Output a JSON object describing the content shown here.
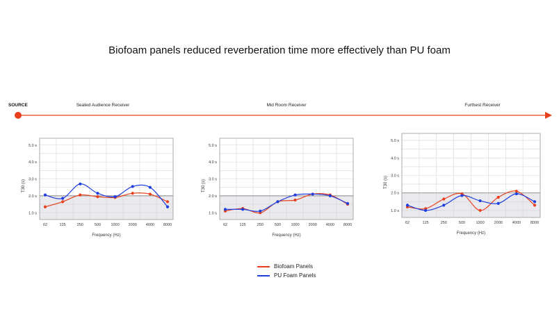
{
  "title": "Biofoam panels reduced reverberation time more effectively than PU foam",
  "timeline": {
    "source_label": "SOURCE",
    "colors": {
      "line": "#e8401c"
    }
  },
  "legend": [
    {
      "label": "Biofoam Panels",
      "color": "#e8401c"
    },
    {
      "label": "PU Foam Panels",
      "color": "#1f3ee0"
    }
  ],
  "chart_data": [
    {
      "type": "line",
      "title": "Seated Audience Receiver",
      "xlabel": "Frequency (Hz)",
      "ylabel": "T30 (s)",
      "categories": [
        "62",
        "125",
        "250",
        "500",
        "1000",
        "2000",
        "4000",
        "8000"
      ],
      "y_ticks": [
        "1.0 s",
        "2.0 s",
        "3.0 s",
        "4.0 s",
        "5.0 s"
      ],
      "ylim": [
        0.6,
        5.4
      ],
      "reference_line": 2.0,
      "series": [
        {
          "name": "Biofoam Panels",
          "color": "#e8401c",
          "values": [
            1.35,
            1.65,
            2.05,
            1.95,
            1.9,
            2.15,
            2.1,
            1.65
          ]
        },
        {
          "name": "PU Foam Panels",
          "color": "#1f3ee0",
          "values": [
            2.05,
            1.85,
            2.7,
            2.15,
            1.95,
            2.55,
            2.5,
            1.35
          ]
        }
      ]
    },
    {
      "type": "line",
      "title": "Mid Room Receiver",
      "xlabel": "Frequency (Hz)",
      "ylabel": "T30 (s)",
      "categories": [
        "62",
        "125",
        "250",
        "500",
        "1000",
        "2000",
        "4000",
        "8000"
      ],
      "y_ticks": [
        "1.0 s",
        "2.0 s",
        "3.0 s",
        "4.0 s",
        "5.0 s"
      ],
      "ylim": [
        0.6,
        5.4
      ],
      "reference_line": 2.0,
      "series": [
        {
          "name": "Biofoam Panels",
          "color": "#e8401c",
          "values": [
            1.1,
            1.25,
            1.0,
            1.65,
            1.75,
            2.1,
            2.05,
            1.5
          ]
        },
        {
          "name": "PU Foam Panels",
          "color": "#1f3ee0",
          "values": [
            1.2,
            1.2,
            1.1,
            1.65,
            2.05,
            2.1,
            2.0,
            1.55
          ]
        }
      ]
    },
    {
      "type": "line",
      "title": "Furthest Receiver",
      "xlabel": "Frequency (Hz)",
      "ylabel": "T30 (s)",
      "categories": [
        "62",
        "125",
        "250",
        "500",
        "1000",
        "2000",
        "4000",
        "8000"
      ],
      "y_ticks": [
        "1.0 s",
        "2.0 s",
        "3.0 s",
        "4.0 s",
        "5.0 s"
      ],
      "ylim": [
        0.6,
        5.4
      ],
      "reference_line": 2.0,
      "series": [
        {
          "name": "Biofoam Panels",
          "color": "#e8401c",
          "values": [
            1.2,
            1.1,
            1.65,
            1.95,
            1.0,
            1.75,
            2.1,
            1.3
          ]
        },
        {
          "name": "PU Foam Panels",
          "color": "#1f3ee0",
          "values": [
            1.3,
            1.0,
            1.3,
            1.85,
            1.55,
            1.4,
            1.95,
            1.5
          ]
        }
      ]
    }
  ]
}
